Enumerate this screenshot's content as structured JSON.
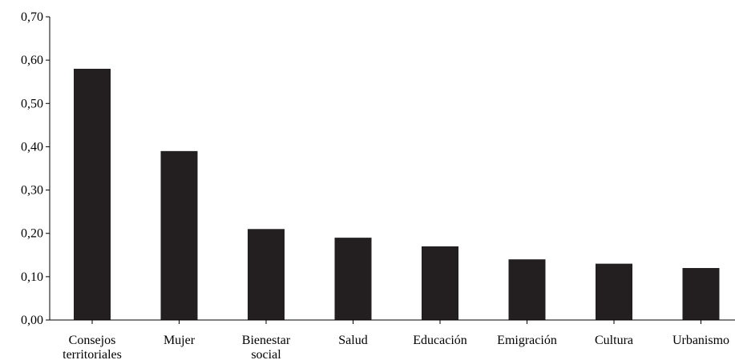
{
  "chart_data": {
    "type": "bar",
    "title": "",
    "xlabel": "",
    "ylabel": "",
    "categories": [
      [
        "Consejos",
        "territoriales"
      ],
      [
        "Mujer"
      ],
      [
        "Bienestar",
        "social"
      ],
      [
        "Salud"
      ],
      [
        "Educación"
      ],
      [
        "Emigración"
      ],
      [
        "Cultura"
      ],
      [
        "Urbanismo"
      ]
    ],
    "values": [
      0.58,
      0.39,
      0.21,
      0.19,
      0.17,
      0.14,
      0.13,
      0.12
    ],
    "ylim": [
      0,
      0.7
    ],
    "yticks": [
      0.0,
      0.1,
      0.2,
      0.3,
      0.4,
      0.5,
      0.6,
      0.7
    ],
    "ytick_labels": [
      "0,00",
      "0,10",
      "0,20",
      "0,30",
      "0,40",
      "0,50",
      "0,60",
      "0,70"
    ],
    "grid": false,
    "legend": "none",
    "bar_color": "#231f20",
    "axis_color": "#000000"
  }
}
